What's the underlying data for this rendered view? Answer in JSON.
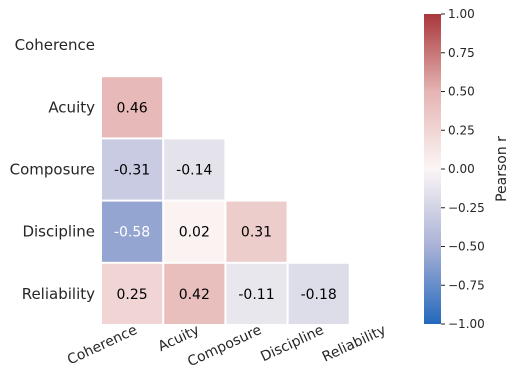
{
  "chart_data": {
    "type": "heatmap",
    "variables": [
      "Coherence",
      "Acuity",
      "Composure",
      "Discipline",
      "Reliability"
    ],
    "mask": "upper-triangle-including-diagonal",
    "cells": [
      {
        "row": "Acuity",
        "col": "Coherence",
        "value": 0.46,
        "label": "0.46"
      },
      {
        "row": "Composure",
        "col": "Coherence",
        "value": -0.31,
        "label": "-0.31"
      },
      {
        "row": "Composure",
        "col": "Acuity",
        "value": -0.14,
        "label": "-0.14"
      },
      {
        "row": "Discipline",
        "col": "Coherence",
        "value": -0.58,
        "label": "-0.58"
      },
      {
        "row": "Discipline",
        "col": "Acuity",
        "value": 0.02,
        "label": "0.02"
      },
      {
        "row": "Discipline",
        "col": "Composure",
        "value": 0.31,
        "label": "0.31"
      },
      {
        "row": "Reliability",
        "col": "Coherence",
        "value": 0.25,
        "label": "0.25"
      },
      {
        "row": "Reliability",
        "col": "Acuity",
        "value": 0.42,
        "label": "0.42"
      },
      {
        "row": "Reliability",
        "col": "Composure",
        "value": -0.11,
        "label": "-0.11"
      },
      {
        "row": "Reliability",
        "col": "Discipline",
        "value": -0.18,
        "label": "-0.18"
      }
    ],
    "colormap": "vlag",
    "colormap_stops": [
      "#2369bd",
      "#a9b1d6",
      "#fbf6f5",
      "#e5b4b3",
      "#a9373b"
    ],
    "value_range": [
      -1.0,
      1.0
    ],
    "colorbar": {
      "label": "Pearson r",
      "ticks": [
        -1.0,
        -0.75,
        -0.5,
        -0.25,
        0.0,
        0.25,
        0.5,
        0.75,
        1.0
      ],
      "tick_labels": [
        "−1.00",
        "−0.75",
        "−0.50",
        "−0.25",
        "0.00",
        "0.25",
        "0.50",
        "0.75",
        "1.00"
      ]
    },
    "grid": false,
    "legend": "right"
  }
}
